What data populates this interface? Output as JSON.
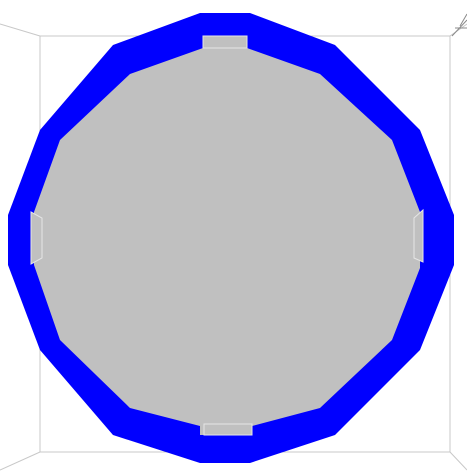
{
  "scene": {
    "background_color": "#ffffff",
    "bounding_box_color": "#c8c8c8",
    "outer_ring_color": "#0000ff",
    "inner_face_color": "#c0c0c0",
    "tab_color": "#c0c0c0",
    "edge_highlight_color": "#e6e6e6",
    "axes_gizmo_color": "#8a8a8a",
    "shape": "octagon-ring"
  }
}
